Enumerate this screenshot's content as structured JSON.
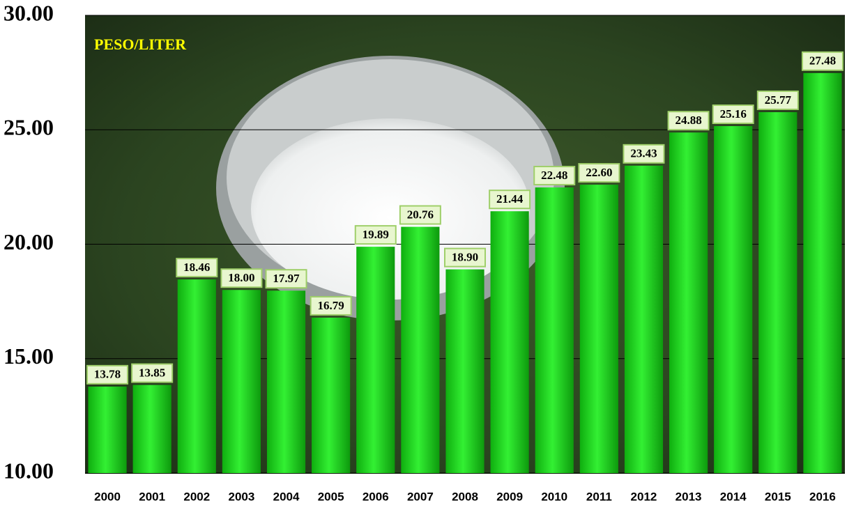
{
  "chart_data": {
    "type": "bar",
    "annotation": "PESO/LITER",
    "categories": [
      "2000",
      "2001",
      "2002",
      "2003",
      "2004",
      "2005",
      "2006",
      "2007",
      "2008",
      "2009",
      "2010",
      "2011",
      "2012",
      "2013",
      "2014",
      "2015",
      "2016"
    ],
    "values": [
      13.78,
      13.85,
      18.46,
      18.0,
      17.97,
      16.79,
      19.89,
      20.76,
      18.9,
      21.44,
      22.48,
      22.6,
      23.43,
      24.88,
      25.16,
      25.77,
      27.48
    ],
    "value_labels": [
      "13.78",
      "13.85",
      "18.46",
      "18.00",
      "17.97",
      "16.79",
      "19.89",
      "20.76",
      "18.90",
      "21.44",
      "22.48",
      "22.60",
      "23.43",
      "24.88",
      "25.16",
      "25.77",
      "27.48"
    ],
    "color": "#1fd81f",
    "ylim": [
      10,
      30
    ],
    "yticks": [
      {
        "value": 10,
        "label": "10.00"
      },
      {
        "value": 15,
        "label": "15.00"
      },
      {
        "value": 20,
        "label": "20.00"
      },
      {
        "value": 25,
        "label": "25.00"
      },
      {
        "value": 30,
        "label": "30.00"
      }
    ],
    "grid": true
  }
}
